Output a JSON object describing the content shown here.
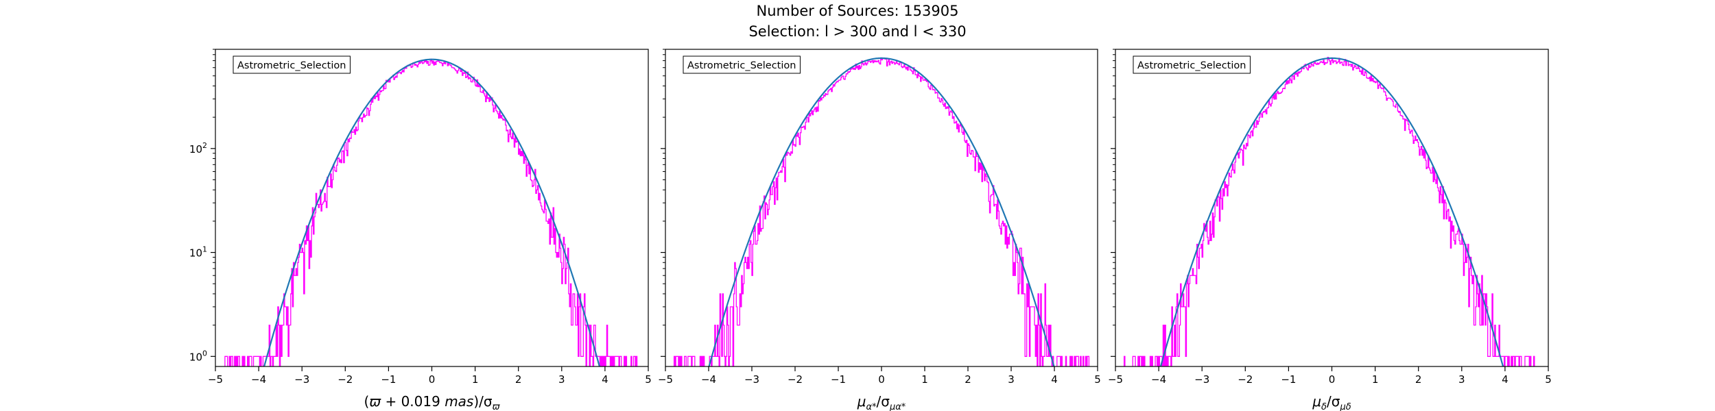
{
  "figure": {
    "title_line1": "Number of Sources: 153905",
    "title_line2": "Selection: l > 300 and l < 330"
  },
  "colors": {
    "histogram": "#ff00ff",
    "gaussian_fit": "#1f77b4",
    "axes": "#000000",
    "background": "#ffffff"
  },
  "chart_data": [
    {
      "type": "line",
      "legend_label": "Astrometric_Selection",
      "legend_placement": "upper-left",
      "xlabel_parts": {
        "pre": "(",
        "sym": "ϖ",
        "post": " + 0.019 ",
        "unit": "mas",
        "close": ")/σ",
        "sub": "ϖ"
      },
      "ylabel": "",
      "xlim": [
        -5,
        5
      ],
      "ylim": [
        0.8,
        900
      ],
      "yscale": "log",
      "x_ticks": [
        -5,
        -4,
        -3,
        -2,
        -1,
        0,
        1,
        2,
        3,
        4,
        5
      ],
      "x_tick_labels": [
        "−5",
        "−4",
        "−3",
        "−2",
        "−1",
        "0",
        "1",
        "2",
        "3",
        "4",
        "5"
      ],
      "y_ticks": [
        1,
        10,
        100
      ],
      "y_tick_labels": [
        {
          "base": "10",
          "exp": "0"
        },
        {
          "base": "10",
          "exp": "1"
        },
        {
          "base": "10",
          "exp": "2"
        }
      ],
      "show_y_tick_labels": true,
      "series": [
        {
          "kind": "gaussian_fit",
          "amplitude": 720,
          "mean": 0.0,
          "sigma": 1.05,
          "x_min": -5,
          "x_max": 5
        },
        {
          "kind": "histogram",
          "peak": 690,
          "mean": 0.0,
          "sigma": 1.02,
          "bin_width": 0.02,
          "counts_floor": 1,
          "x_min": -5,
          "x_max": 5,
          "noise_seed": 11
        }
      ]
    },
    {
      "type": "line",
      "legend_label": "Astrometric_Selection",
      "legend_placement": "upper-left",
      "xlabel_parts": {
        "pre": "",
        "sym": "μ",
        "symsub": "α*",
        "post": "/σ",
        "sub": "μα*"
      },
      "ylabel": "",
      "xlim": [
        -5,
        5
      ],
      "ylim": [
        0.8,
        900
      ],
      "yscale": "log",
      "x_ticks": [
        -5,
        -4,
        -3,
        -2,
        -1,
        0,
        1,
        2,
        3,
        4,
        5
      ],
      "x_tick_labels": [
        "−5",
        "−4",
        "−3",
        "−2",
        "−1",
        "0",
        "1",
        "2",
        "3",
        "4",
        "5"
      ],
      "y_ticks": [
        1,
        10,
        100
      ],
      "y_tick_labels": [],
      "show_y_tick_labels": false,
      "series": [
        {
          "kind": "gaussian_fit",
          "amplitude": 740,
          "mean": 0.0,
          "sigma": 1.08,
          "x_min": -5,
          "x_max": 5
        },
        {
          "kind": "histogram",
          "peak": 700,
          "mean": 0.0,
          "sigma": 1.05,
          "bin_width": 0.02,
          "counts_floor": 1,
          "x_min": -5,
          "x_max": 5,
          "noise_seed": 23
        }
      ]
    },
    {
      "type": "line",
      "legend_label": "Astrometric_Selection",
      "legend_placement": "upper-left",
      "xlabel_parts": {
        "pre": "",
        "sym": "μ",
        "symsub": "δ",
        "post": "/σ",
        "sub": "μδ"
      },
      "ylabel": "",
      "xlim": [
        -5,
        5
      ],
      "ylim": [
        0.8,
        900
      ],
      "yscale": "log",
      "x_ticks": [
        -5,
        -4,
        -3,
        -2,
        -1,
        0,
        1,
        2,
        3,
        4,
        5
      ],
      "x_tick_labels": [
        "−5",
        "−4",
        "−3",
        "−2",
        "−1",
        "0",
        "1",
        "2",
        "3",
        "4",
        "5"
      ],
      "y_ticks": [
        1,
        10,
        100
      ],
      "y_tick_labels": [],
      "show_y_tick_labels": false,
      "series": [
        {
          "kind": "gaussian_fit",
          "amplitude": 740,
          "mean": 0.0,
          "sigma": 1.07,
          "x_min": -5,
          "x_max": 5
        },
        {
          "kind": "histogram",
          "peak": 700,
          "mean": 0.0,
          "sigma": 1.04,
          "bin_width": 0.02,
          "counts_floor": 1,
          "x_min": -5,
          "x_max": 5,
          "noise_seed": 37
        }
      ]
    }
  ]
}
